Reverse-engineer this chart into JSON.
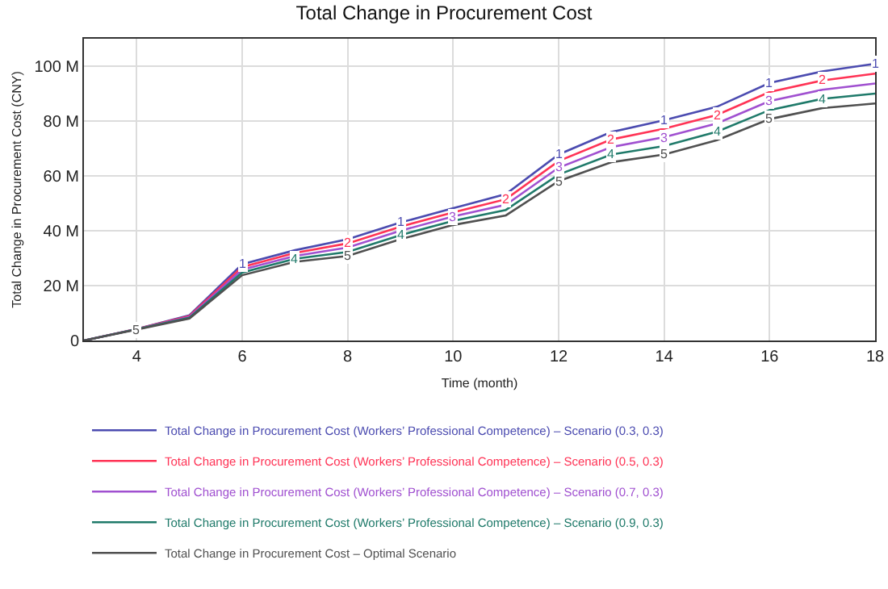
{
  "chart_data": {
    "type": "line",
    "title": "Total Change in Procurement Cost",
    "xlabel": "Time (month)",
    "ylabel": "Total Change in Procurement Cost (CNY)",
    "x": [
      3,
      4,
      5,
      6,
      7,
      8,
      9,
      10,
      11,
      12,
      13,
      14,
      15,
      16,
      17,
      18
    ],
    "series": [
      {
        "name": "Total Change in Procurement Cost (Workers’ Professional Competence) – Scenario (0.3, 0.3)",
        "color": "#4b4bb0",
        "values": [
          0,
          4.2,
          9.2,
          27.8,
          32.9,
          36.9,
          43.0,
          48.2,
          53.4,
          67.8,
          76.0,
          80.3,
          85.2,
          93.9,
          98.1,
          100.9
        ]
      },
      {
        "name": "Total Change in Procurement Cost (Workers’ Professional Competence) – Scenario (0.5, 0.3)",
        "color": "#ff3355",
        "values": [
          0,
          4.2,
          8.9,
          26.8,
          31.9,
          35.4,
          41.5,
          46.7,
          51.5,
          65.4,
          73.3,
          77.2,
          82.2,
          90.6,
          94.8,
          97.3
        ]
      },
      {
        "name": "Total Change in Procurement Cost (Workers’ Professional Competence) – Scenario (0.7, 0.3)",
        "color": "#a050d0",
        "values": [
          0,
          4.1,
          8.6,
          25.8,
          30.8,
          33.9,
          40.0,
          45.2,
          49.5,
          63.0,
          70.5,
          74.1,
          79.1,
          87.3,
          91.4,
          93.7
        ]
      },
      {
        "name": "Total Change in Procurement Cost (Workers’ Professional Competence) – Scenario (0.9, 0.3)",
        "color": "#1f7a6a",
        "values": [
          0,
          4.1,
          8.3,
          24.8,
          29.8,
          32.3,
          38.4,
          43.6,
          47.6,
          60.5,
          67.8,
          70.9,
          76.1,
          84.0,
          88.1,
          90.0
        ]
      },
      {
        "name": "Total Change in Procurement Cost – Optimal Scenario",
        "color": "#505050",
        "values": [
          0,
          4.0,
          8.0,
          23.8,
          28.7,
          30.8,
          36.9,
          42.1,
          45.6,
          58.1,
          65.0,
          67.8,
          73.0,
          80.7,
          84.7,
          86.4
        ]
      }
    ],
    "annotations": [
      {
        "text": "1",
        "x": 6,
        "y": 27.8
      },
      {
        "text": "1",
        "x": 9,
        "y": 43.0
      },
      {
        "text": "1",
        "x": 12,
        "y": 67.8
      },
      {
        "text": "1",
        "x": 14,
        "y": 80.3
      },
      {
        "text": "1",
        "x": 16,
        "y": 93.9
      },
      {
        "text": "1",
        "x": 18,
        "y": 100.9
      },
      {
        "text": "2",
        "x": 8,
        "y": 35.4
      },
      {
        "text": "2",
        "x": 11,
        "y": 51.5
      },
      {
        "text": "2",
        "x": 13,
        "y": 73.3
      },
      {
        "text": "2",
        "x": 15,
        "y": 82.2
      },
      {
        "text": "2",
        "x": 17,
        "y": 94.8
      },
      {
        "text": "3",
        "x": 10,
        "y": 45.2
      },
      {
        "text": "3",
        "x": 12,
        "y": 63.0
      },
      {
        "text": "3",
        "x": 14,
        "y": 74.1
      },
      {
        "text": "3",
        "x": 16,
        "y": 87.3
      },
      {
        "text": "4",
        "x": 7,
        "y": 29.8
      },
      {
        "text": "4",
        "x": 9,
        "y": 38.4
      },
      {
        "text": "4",
        "x": 13,
        "y": 67.8
      },
      {
        "text": "4",
        "x": 15,
        "y": 76.1
      },
      {
        "text": "4",
        "x": 17,
        "y": 88.1
      },
      {
        "text": "5",
        "x": 4,
        "y": 4.0
      },
      {
        "text": "5",
        "x": 8,
        "y": 30.8
      },
      {
        "text": "5",
        "x": 12,
        "y": 58.1
      },
      {
        "text": "5",
        "x": 14,
        "y": 67.8
      },
      {
        "text": "5",
        "x": 16,
        "y": 80.7
      }
    ],
    "xlim": [
      3,
      18
    ],
    "xticks": [
      4,
      6,
      8,
      10,
      12,
      14,
      16,
      18
    ],
    "ylim": [
      0,
      110
    ],
    "yticks": [
      0,
      {
        "value": 20,
        "label": "20 M"
      },
      {
        "value": 40,
        "label": "40 M"
      },
      {
        "value": 60,
        "label": "60 M"
      },
      {
        "value": 80,
        "label": "80 M"
      },
      {
        "value": 100,
        "label": "100 M"
      }
    ],
    "grid": true,
    "legend": "bottom",
    "marker": "none",
    "line_style": "solid"
  }
}
